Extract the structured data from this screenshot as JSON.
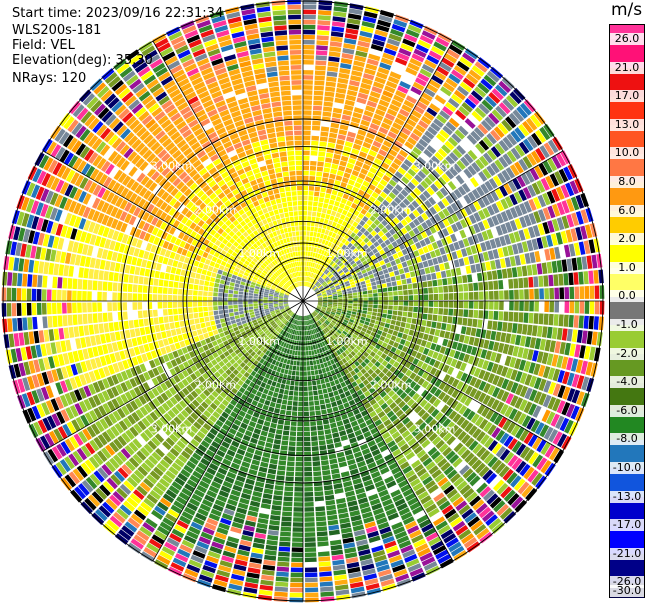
{
  "header": {
    "start_time": "Start time: 2023/09/16 22:31:34",
    "instrument": "WLS200s-181",
    "field": "Field: VEL",
    "elevation": "Elevation(deg): 35.30",
    "nrays": "NRays: 120"
  },
  "colorbar": {
    "unit": "m/s",
    "ticks": [
      "26.0",
      "21.0",
      "17.0",
      "13.0",
      "10.0",
      "8.0",
      "6.0",
      "2.0",
      "1.0",
      "0.0",
      "-1.0",
      "-2.0",
      "-4.0",
      "-6.0",
      "-8.0",
      "-10.0",
      "-13.0",
      "-17.0",
      "-21.0",
      "-26.0",
      "-30.0"
    ],
    "colors": [
      "#ff3399",
      "#ff1177",
      "#ee1111",
      "#ff3311",
      "#ff5522",
      "#ff7744",
      "#ff9911",
      "#ffcc00",
      "#ffff00",
      "#ffff66",
      "#777777",
      "#99cc33",
      "#669922",
      "#447711",
      "#228822",
      "#2277bb",
      "#1155dd",
      "#0000cc",
      "#0000ff",
      "#000088",
      "#000044"
    ]
  },
  "ppi": {
    "ring_labels": [
      "1.00km",
      "2.00km",
      "3.00km"
    ],
    "nrays": 120,
    "palette": {
      "yellow": "#ffff00",
      "light_yellow": "#ffee44",
      "orange": "#ffaa11",
      "dark_orange": "#ff9900",
      "salmon": "#ff8855",
      "gray": "#778899",
      "light_green": "#99cc33",
      "olive": "#779922",
      "green": "#33882a",
      "dark_green": "#226622",
      "red": "#ee1111",
      "pink": "#ff3399",
      "blue": "#0011ee",
      "navy": "#000066",
      "teal": "#2277bb",
      "purple": "#991199",
      "black": "#000000"
    }
  }
}
